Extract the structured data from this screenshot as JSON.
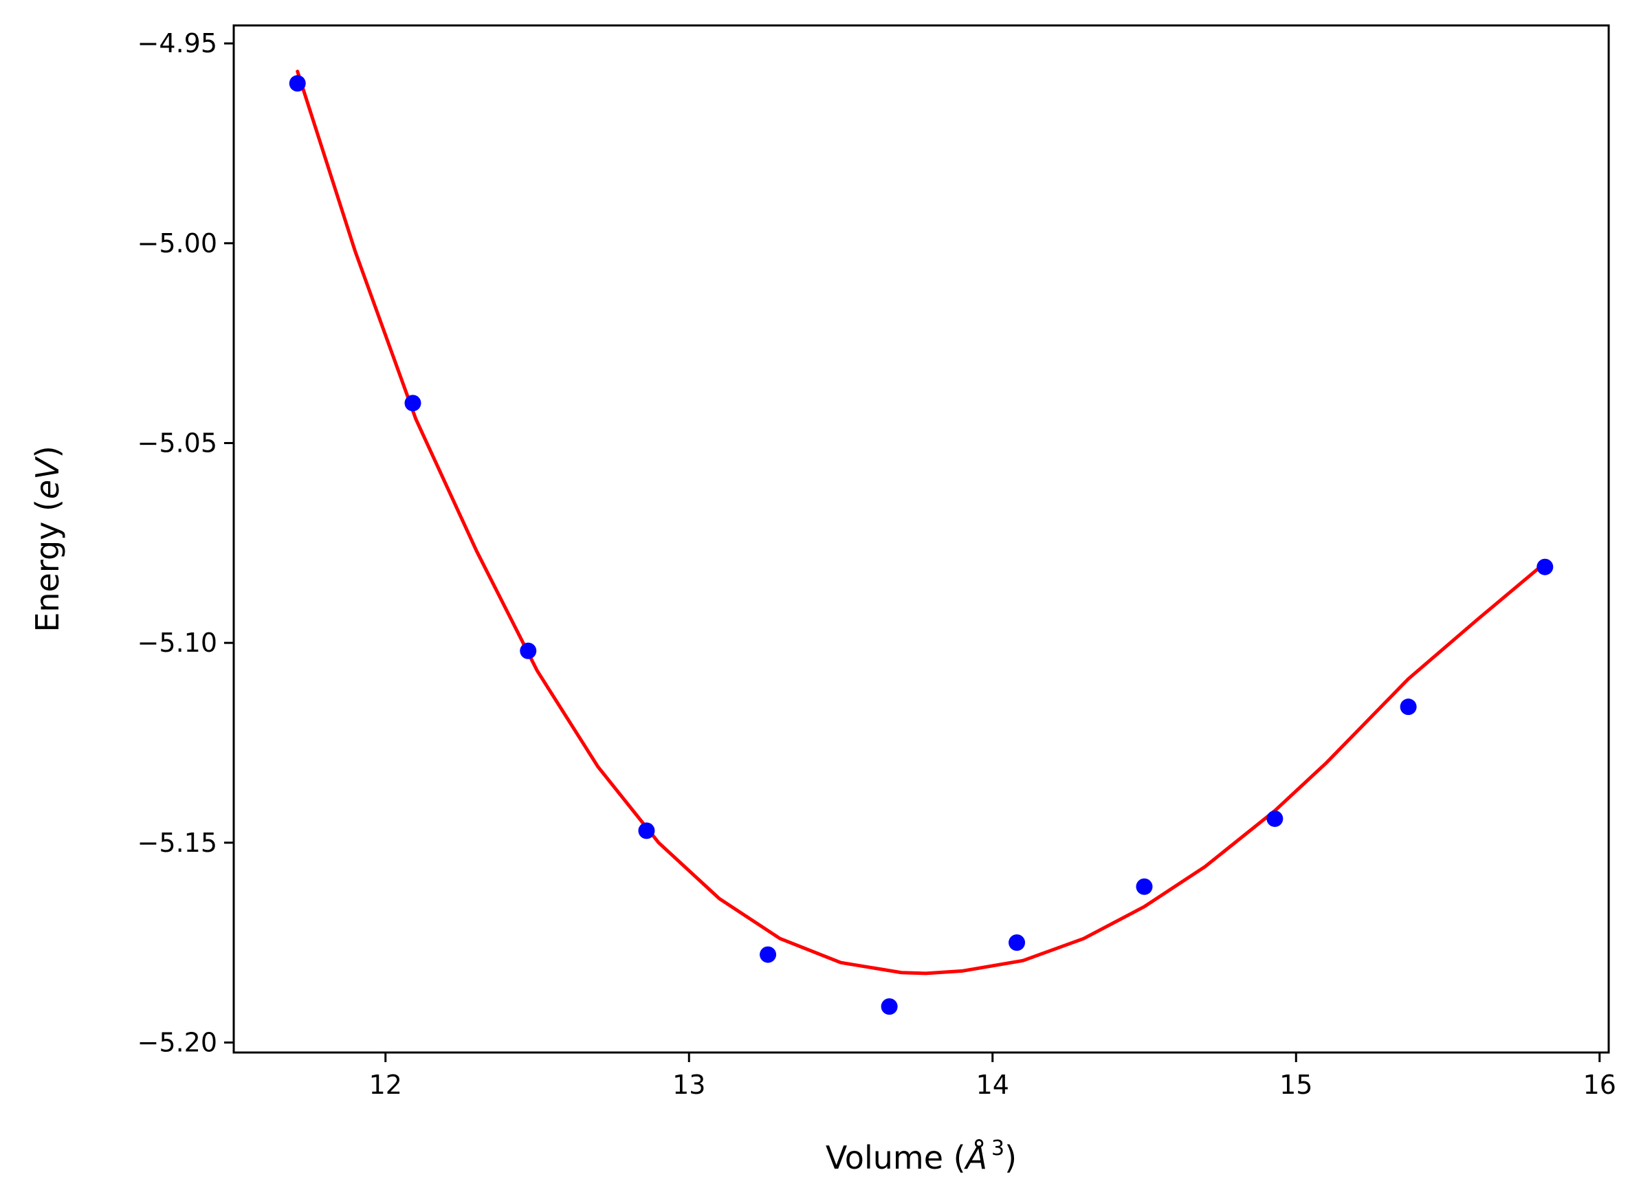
{
  "chart_data": {
    "type": "scatter",
    "title": "",
    "xlabel": "Volume (Å³)",
    "xlabel_parts": {
      "prefix": "Volume (",
      "symbol": "Å",
      "sup": "3",
      "suffix": ")"
    },
    "ylabel": "Energy (eV)",
    "ylabel_parts": {
      "prefix": "Energy (",
      "unit": "eV",
      "suffix": ")"
    },
    "xlim": [
      11.5,
      16.03
    ],
    "ylim": [
      -5.2025,
      -4.9455
    ],
    "xticks": [
      12,
      13,
      14,
      15,
      16
    ],
    "xtick_labels": [
      "12",
      "13",
      "14",
      "15",
      "16"
    ],
    "yticks": [
      -4.95,
      -5.0,
      -5.05,
      -5.1,
      -5.15,
      -5.2
    ],
    "ytick_labels": [
      "−4.95",
      "−5.00",
      "−5.05",
      "−5.10",
      "−5.15",
      "−5.20"
    ],
    "grid": false,
    "series": [
      {
        "kind": "scatter",
        "color": "#0000ff",
        "x": [
          11.71,
          12.09,
          12.47,
          12.86,
          13.26,
          13.66,
          14.08,
          14.5,
          14.93,
          15.37,
          15.82
        ],
        "y": [
          -4.96,
          -5.04,
          -5.102,
          -5.147,
          -5.178,
          -5.191,
          -5.175,
          -5.161,
          -5.144,
          -5.116,
          -5.081
        ]
      },
      {
        "kind": "line",
        "color": "#ff0000",
        "x": [
          11.71,
          11.9,
          12.1,
          12.3,
          12.5,
          12.7,
          12.9,
          13.1,
          13.3,
          13.5,
          13.7,
          13.78,
          13.9,
          14.1,
          14.3,
          14.5,
          14.7,
          14.93,
          15.1,
          15.37,
          15.6,
          15.82
        ],
        "y": [
          -4.957,
          -5.002,
          -5.044,
          -5.077,
          -5.107,
          -5.131,
          -5.15,
          -5.164,
          -5.174,
          -5.18,
          -5.1825,
          -5.1827,
          -5.1821,
          -5.1795,
          -5.174,
          -5.166,
          -5.156,
          -5.142,
          -5.13,
          -5.109,
          -5.094,
          -5.08
        ]
      }
    ]
  }
}
